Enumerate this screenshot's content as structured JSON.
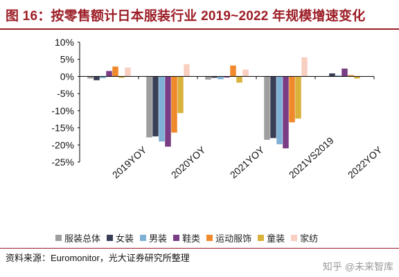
{
  "header": {
    "title": "图 16：按零售额计日本服装行业 2019~2022 年规模增速变化"
  },
  "footer": {
    "source": "资料来源：Euromonitor，光大证券研究所整理"
  },
  "watermark": {
    "text": "知乎 @未来智库"
  },
  "colors": {
    "title": "#9c1d26",
    "axis": "#000000"
  },
  "chart_data": {
    "type": "bar",
    "title": "图 16：按零售额计日本服装行业 2019~2022 年规模增速变化",
    "categories": [
      "2019YOY",
      "2020YOY",
      "2021YOY",
      "2021VS2019",
      "2022YOY"
    ],
    "y_ticks": [
      "10%",
      "5%",
      "0%",
      "-5%",
      "-10%",
      "-15%",
      "-20%",
      "-25%"
    ],
    "ylim": [
      -25,
      10
    ],
    "unit": "%",
    "grid": false,
    "legend_position": "bottom",
    "series": [
      {
        "name": "服装总体",
        "color": "#9e9e9e",
        "values": [
          -0.6,
          -17.8,
          -0.9,
          -18.5,
          0.0
        ]
      },
      {
        "name": "女装",
        "color": "#3a3f58",
        "values": [
          -1.1,
          -17.5,
          -0.4,
          -18.0,
          0.9
        ]
      },
      {
        "name": "男装",
        "color": "#7fb0d6",
        "values": [
          -0.5,
          -19.0,
          -0.8,
          -19.8,
          0.3
        ]
      },
      {
        "name": "鞋类",
        "color": "#7a3c84",
        "values": [
          1.6,
          -20.5,
          -0.3,
          -21.0,
          2.3
        ]
      },
      {
        "name": "运动服饰",
        "color": "#f0882c",
        "values": [
          2.9,
          -16.4,
          3.2,
          -13.4,
          0.4
        ]
      },
      {
        "name": "童装",
        "color": "#d9b23c",
        "values": [
          -0.4,
          -10.7,
          -1.8,
          -12.3,
          -0.6
        ]
      },
      {
        "name": "家纺",
        "color": "#f8cfc0",
        "values": [
          2.6,
          3.6,
          2.0,
          5.6,
          0.0
        ]
      }
    ]
  }
}
